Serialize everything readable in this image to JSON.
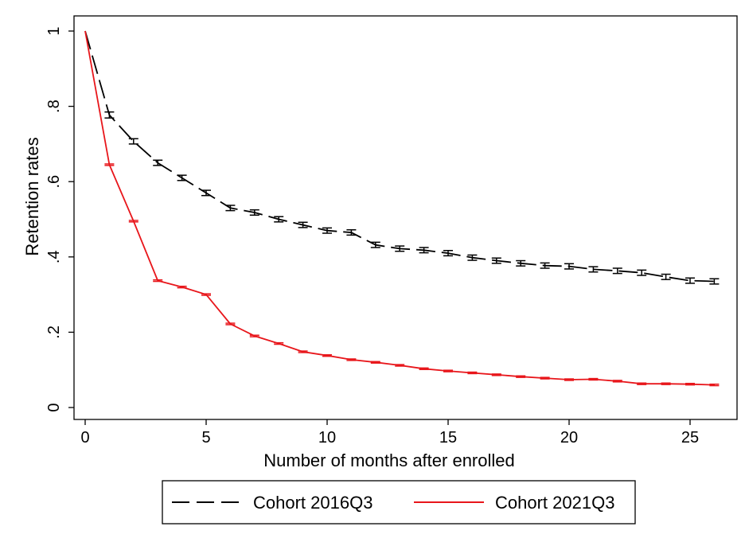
{
  "chart_data": {
    "type": "line",
    "title": "",
    "xlabel": "Number of months after enrolled",
    "ylabel": "Retention rates",
    "xlim": [
      0,
      26.3
    ],
    "ylim": [
      0,
      1
    ],
    "xticks": [
      0,
      5,
      10,
      15,
      20,
      25
    ],
    "yticks": [
      0,
      0.2,
      0.4,
      0.6,
      0.8,
      1
    ],
    "xtick_labels": [
      "0",
      "5",
      "10",
      "15",
      "20",
      "25"
    ],
    "ytick_labels": [
      "0",
      ".2",
      ".4",
      ".6",
      ".8",
      "1"
    ],
    "grid": false,
    "legend_position": "bottom",
    "error_bars": true,
    "series": [
      {
        "name": "Cohort 2016Q3",
        "color": "#000000",
        "line_style": "dashed",
        "x": [
          0,
          1,
          2,
          3,
          4,
          5,
          6,
          7,
          8,
          9,
          10,
          11,
          12,
          13,
          14,
          15,
          16,
          17,
          18,
          19,
          20,
          21,
          22,
          23,
          24,
          25,
          26
        ],
        "y": [
          1.0,
          0.777,
          0.707,
          0.65,
          0.61,
          0.57,
          0.53,
          0.518,
          0.5,
          0.485,
          0.47,
          0.465,
          0.432,
          0.422,
          0.418,
          0.41,
          0.398,
          0.39,
          0.383,
          0.377,
          0.375,
          0.367,
          0.363,
          0.358,
          0.347,
          0.337,
          0.335
        ],
        "err": [
          0,
          0.008,
          0.007,
          0.007,
          0.007,
          0.007,
          0.007,
          0.007,
          0.007,
          0.007,
          0.007,
          0.007,
          0.007,
          0.007,
          0.007,
          0.007,
          0.007,
          0.007,
          0.007,
          0.007,
          0.007,
          0.007,
          0.007,
          0.007,
          0.007,
          0.007,
          0.007
        ]
      },
      {
        "name": "Cohort 2021Q3",
        "color": "#e8161b",
        "line_style": "solid",
        "x": [
          0,
          1,
          2,
          3,
          4,
          5,
          6,
          7,
          8,
          9,
          10,
          11,
          12,
          13,
          14,
          15,
          16,
          17,
          18,
          19,
          20,
          21,
          22,
          23,
          24,
          25,
          26
        ],
        "y": [
          1.0,
          0.645,
          0.495,
          0.337,
          0.32,
          0.3,
          0.222,
          0.19,
          0.17,
          0.148,
          0.138,
          0.127,
          0.12,
          0.112,
          0.103,
          0.097,
          0.092,
          0.087,
          0.082,
          0.078,
          0.074,
          0.075,
          0.07,
          0.063,
          0.063,
          0.062,
          0.06
        ],
        "err": [
          0,
          0.002,
          0.002,
          0.002,
          0.002,
          0.002,
          0.002,
          0.002,
          0.002,
          0.002,
          0.002,
          0.002,
          0.002,
          0.002,
          0.002,
          0.002,
          0.002,
          0.002,
          0.002,
          0.002,
          0.002,
          0.002,
          0.002,
          0.002,
          0.002,
          0.002,
          0.002
        ]
      }
    ]
  }
}
